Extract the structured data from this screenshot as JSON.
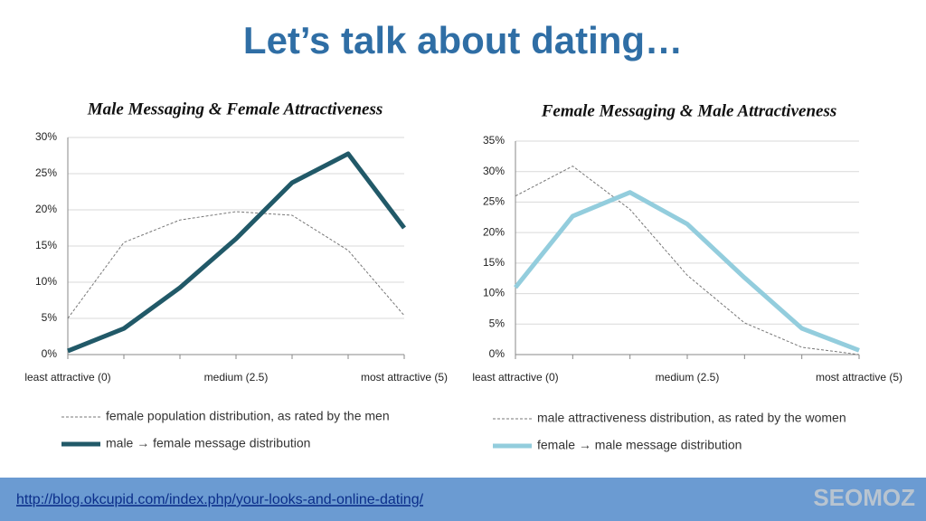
{
  "title": "Let’s talk about dating…",
  "chart_data": [
    {
      "type": "line",
      "title": "Male Messaging & Female Attractiveness",
      "categories": [
        "least attractive (0)",
        null,
        null,
        "medium (2.5)",
        null,
        null,
        "most attractive (5)"
      ],
      "ylim": [
        0,
        30
      ],
      "yticks": [
        {
          "value": 0,
          "label": "0%"
        },
        {
          "value": 5,
          "label": "5%"
        },
        {
          "value": 10,
          "label": "10%"
        },
        {
          "value": 15,
          "label": "15%"
        },
        {
          "value": 20,
          "label": "20%"
        },
        {
          "value": 25,
          "label": "25%"
        },
        {
          "value": 30,
          "label": "30%"
        }
      ],
      "grid": true,
      "series": [
        {
          "name": "female population distribution, as rated by the men",
          "color": "#777777",
          "dashed": true,
          "values": [
            5,
            15.5,
            18.6,
            19.75,
            19.25,
            14.4,
            5.4
          ]
        },
        {
          "name": "male → female message distribution",
          "color": "#215968",
          "dashed": false,
          "values": [
            0.5,
            3.6,
            9.25,
            16,
            23.75,
            27.75,
            17.5
          ]
        }
      ]
    },
    {
      "type": "line",
      "title": "Female Messaging & Male Attractiveness",
      "categories": [
        "least attractive (0)",
        null,
        null,
        "medium (2.5)",
        null,
        null,
        "most attractive (5)"
      ],
      "ylim": [
        0,
        35
      ],
      "yticks": [
        {
          "value": 0,
          "label": "0%"
        },
        {
          "value": 5,
          "label": "5%"
        },
        {
          "value": 10,
          "label": "10%"
        },
        {
          "value": 15,
          "label": "15%"
        },
        {
          "value": 20,
          "label": "20%"
        },
        {
          "value": 25,
          "label": "25%"
        },
        {
          "value": 30,
          "label": "30%"
        },
        {
          "value": 35,
          "label": "35%"
        }
      ],
      "grid": true,
      "series": [
        {
          "name": "male attractiveness distribution, as rated by the women",
          "color": "#777777",
          "dashed": true,
          "values": [
            26,
            30.9,
            23.8,
            13,
            5.2,
            1.2,
            0
          ]
        },
        {
          "name": "female → male message distribution",
          "color": "#93cddd",
          "dashed": false,
          "values": [
            11,
            22.7,
            26.6,
            21.4,
            12.6,
            4.3,
            0.7
          ]
        }
      ]
    }
  ],
  "footer": {
    "link": "http://blog.okcupid.com/index.php/your-looks-and-online-dating/",
    "logo": "SEOMOZ"
  }
}
